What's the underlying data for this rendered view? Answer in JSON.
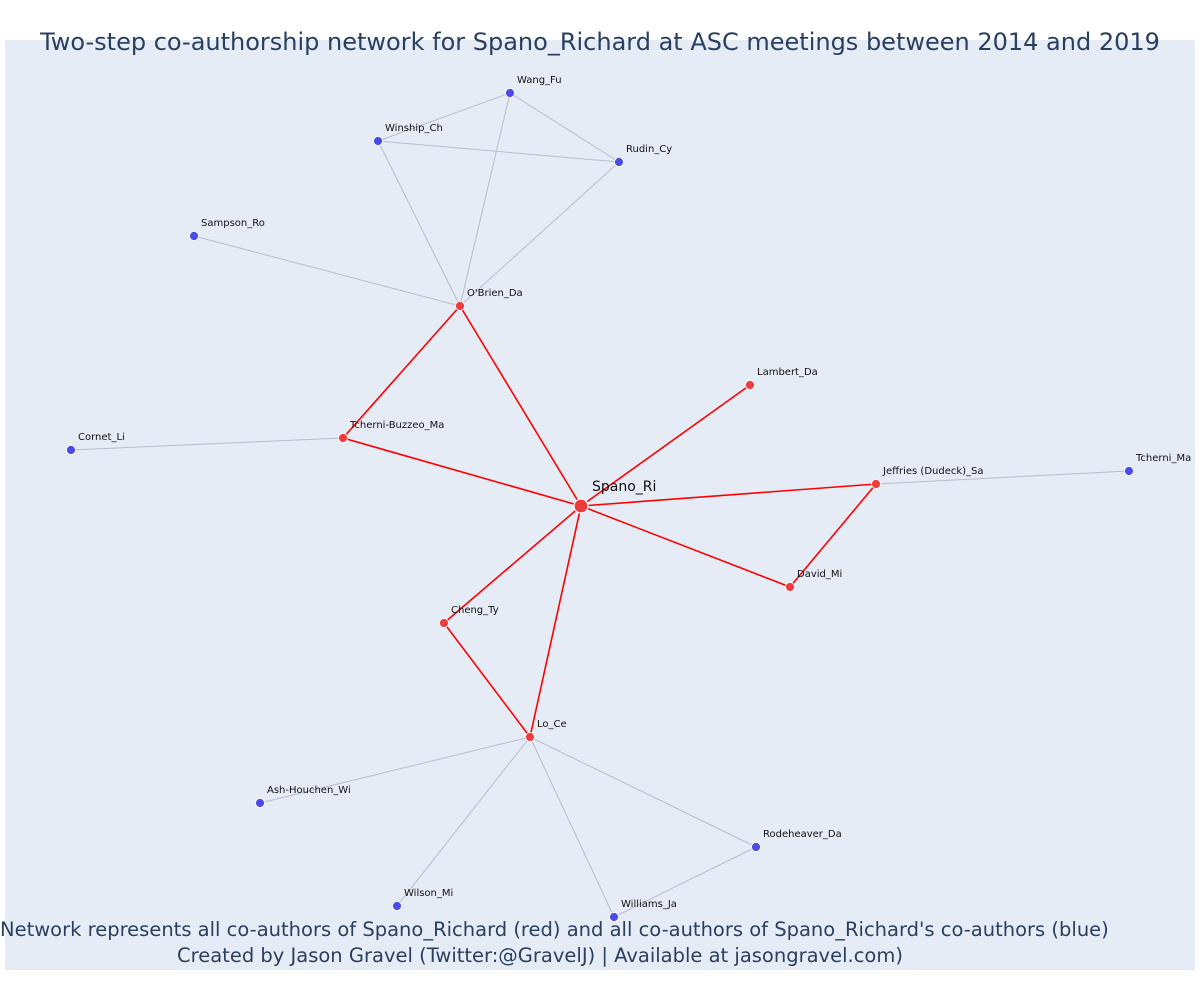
{
  "title": "Two-step co-authorship network for Spano_Richard at ASC meetings between 2014 and 2019",
  "footer": {
    "line1": "Network represents all co-authors of Spano_Richard (red) and all co-authors of Spano_Richard's co-authors (blue)",
    "line2": "Created by Jason Gravel (Twitter:@GravelJ) | Available at jasongravel.com)"
  },
  "colors": {
    "coauthor": "#ef3b3b",
    "second_degree": "#4b4bea",
    "red_edge": "#ff0000",
    "gray_edge": "#b8bccb"
  },
  "nodes": [
    {
      "id": "spano",
      "label": "Spano_Ri",
      "group": "center"
    },
    {
      "id": "obrien",
      "label": "O'Brien_Da",
      "group": "coauthor"
    },
    {
      "id": "tcherni_buzzeo",
      "label": "Tcherni-Buzzeo_Ma",
      "group": "coauthor"
    },
    {
      "id": "lambert",
      "label": "Lambert_Da",
      "group": "coauthor"
    },
    {
      "id": "jeffries",
      "label": "Jeffries (Dudeck)_Sa",
      "group": "coauthor"
    },
    {
      "id": "david",
      "label": "David_Mi",
      "group": "coauthor"
    },
    {
      "id": "cheng",
      "label": "Cheng_Ty",
      "group": "coauthor"
    },
    {
      "id": "lo",
      "label": "Lo_Ce",
      "group": "coauthor"
    },
    {
      "id": "wang",
      "label": "Wang_Fu",
      "group": "second"
    },
    {
      "id": "winship",
      "label": "Winship_Ch",
      "group": "second"
    },
    {
      "id": "rudin",
      "label": "Rudin_Cy",
      "group": "second"
    },
    {
      "id": "sampson",
      "label": "Sampson_Ro",
      "group": "second"
    },
    {
      "id": "cornet",
      "label": "Cornet_Li",
      "group": "second"
    },
    {
      "id": "tcherni_ma",
      "label": "Tcherni_Ma",
      "group": "second"
    },
    {
      "id": "ash",
      "label": "Ash-Houchen_Wi",
      "group": "second"
    },
    {
      "id": "rodeheaver",
      "label": "Rodeheaver_Da",
      "group": "second"
    },
    {
      "id": "wilson",
      "label": "Wilson_Mi",
      "group": "second"
    },
    {
      "id": "williams",
      "label": "Williams_Ja",
      "group": "second"
    }
  ],
  "edges": [
    {
      "source": "spano",
      "target": "obrien",
      "type": "red"
    },
    {
      "source": "spano",
      "target": "tcherni_buzzeo",
      "type": "red"
    },
    {
      "source": "spano",
      "target": "lambert",
      "type": "red"
    },
    {
      "source": "spano",
      "target": "jeffries",
      "type": "red"
    },
    {
      "source": "spano",
      "target": "david",
      "type": "red"
    },
    {
      "source": "spano",
      "target": "cheng",
      "type": "red"
    },
    {
      "source": "spano",
      "target": "lo",
      "type": "red"
    },
    {
      "source": "obrien",
      "target": "tcherni_buzzeo",
      "type": "red"
    },
    {
      "source": "jeffries",
      "target": "david",
      "type": "red"
    },
    {
      "source": "cheng",
      "target": "lo",
      "type": "red"
    },
    {
      "source": "obrien",
      "target": "wang",
      "type": "gray"
    },
    {
      "source": "obrien",
      "target": "winship",
      "type": "gray"
    },
    {
      "source": "obrien",
      "target": "rudin",
      "type": "gray"
    },
    {
      "source": "obrien",
      "target": "sampson",
      "type": "gray"
    },
    {
      "source": "wang",
      "target": "winship",
      "type": "gray"
    },
    {
      "source": "wang",
      "target": "rudin",
      "type": "gray"
    },
    {
      "source": "winship",
      "target": "rudin",
      "type": "gray"
    },
    {
      "source": "tcherni_buzzeo",
      "target": "cornet",
      "type": "gray"
    },
    {
      "source": "jeffries",
      "target": "tcherni_ma",
      "type": "gray"
    },
    {
      "source": "lo",
      "target": "ash",
      "type": "gray"
    },
    {
      "source": "lo",
      "target": "wilson",
      "type": "gray"
    },
    {
      "source": "lo",
      "target": "williams",
      "type": "gray"
    },
    {
      "source": "lo",
      "target": "rodeheaver",
      "type": "gray"
    },
    {
      "source": "williams",
      "target": "rodeheaver",
      "type": "gray"
    }
  ]
}
